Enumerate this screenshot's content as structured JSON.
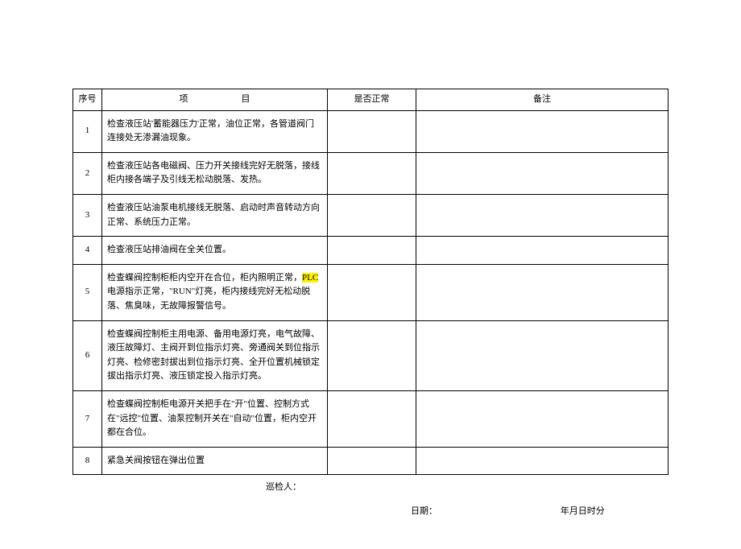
{
  "columns": {
    "num": "序号",
    "item_prefix": "项",
    "item_suffix": "目",
    "normal": "是否正常",
    "remark": "备注"
  },
  "rows": [
    {
      "num": "1",
      "desc_pre": "检查液压站'蓄能器压力'正常，油位正常，各管道阀门连接处无渗漏油现象。",
      "hl": "",
      "desc_post": ""
    },
    {
      "num": "2",
      "desc_pre": "检查液压站各电磁阀、压力开关接线完好无脱落，接线柜内接各端子及引线无松动脱落、发热。",
      "hl": "",
      "desc_post": ""
    },
    {
      "num": "3",
      "desc_pre": "检查液压站油泵电机接线无脱落、启动时声音转动方向正常、系统压力正常。",
      "hl": "",
      "desc_post": ""
    },
    {
      "num": "4",
      "desc_pre": "检查液压站排油阀在全关位置。",
      "hl": "",
      "desc_post": ""
    },
    {
      "num": "5",
      "desc_pre": "检查蝶阀控制柜柜内空开在合位，柜内照明正常，",
      "hl": "PLC",
      "desc_post": "电源指示正常，\"RUN\"灯亮，柜内接线完好无松动脱落、焦臭味，无故障报警信号。"
    },
    {
      "num": "6",
      "desc_pre": "检查蝶阀控制柜主用电源、备用电源灯亮，电气故障、液压故障灯、主阀开到位指示灯亮、旁通阀关到位指示灯亮、检修密封拔出到位指示灯亮、全开位置机械锁定拔出指示灯亮、液压锁定投入指示灯亮。",
      "hl": "",
      "desc_post": ""
    },
    {
      "num": "7",
      "desc_pre": "检查蝶阀控制柜电源开关把手在\"开\"位置、控制方式在\"远控\"位置、油泵控制开关在\"自动\"位置，柜内空开都在合位。",
      "hl": "",
      "desc_post": ""
    },
    {
      "num": "8",
      "desc_pre": "紧急关阀按钮在弹出位置",
      "hl": "",
      "desc_post": ""
    }
  ],
  "footer": {
    "inspector_label": "巡检人：",
    "date_label": "日期：",
    "date_fields": "年月日时分"
  }
}
